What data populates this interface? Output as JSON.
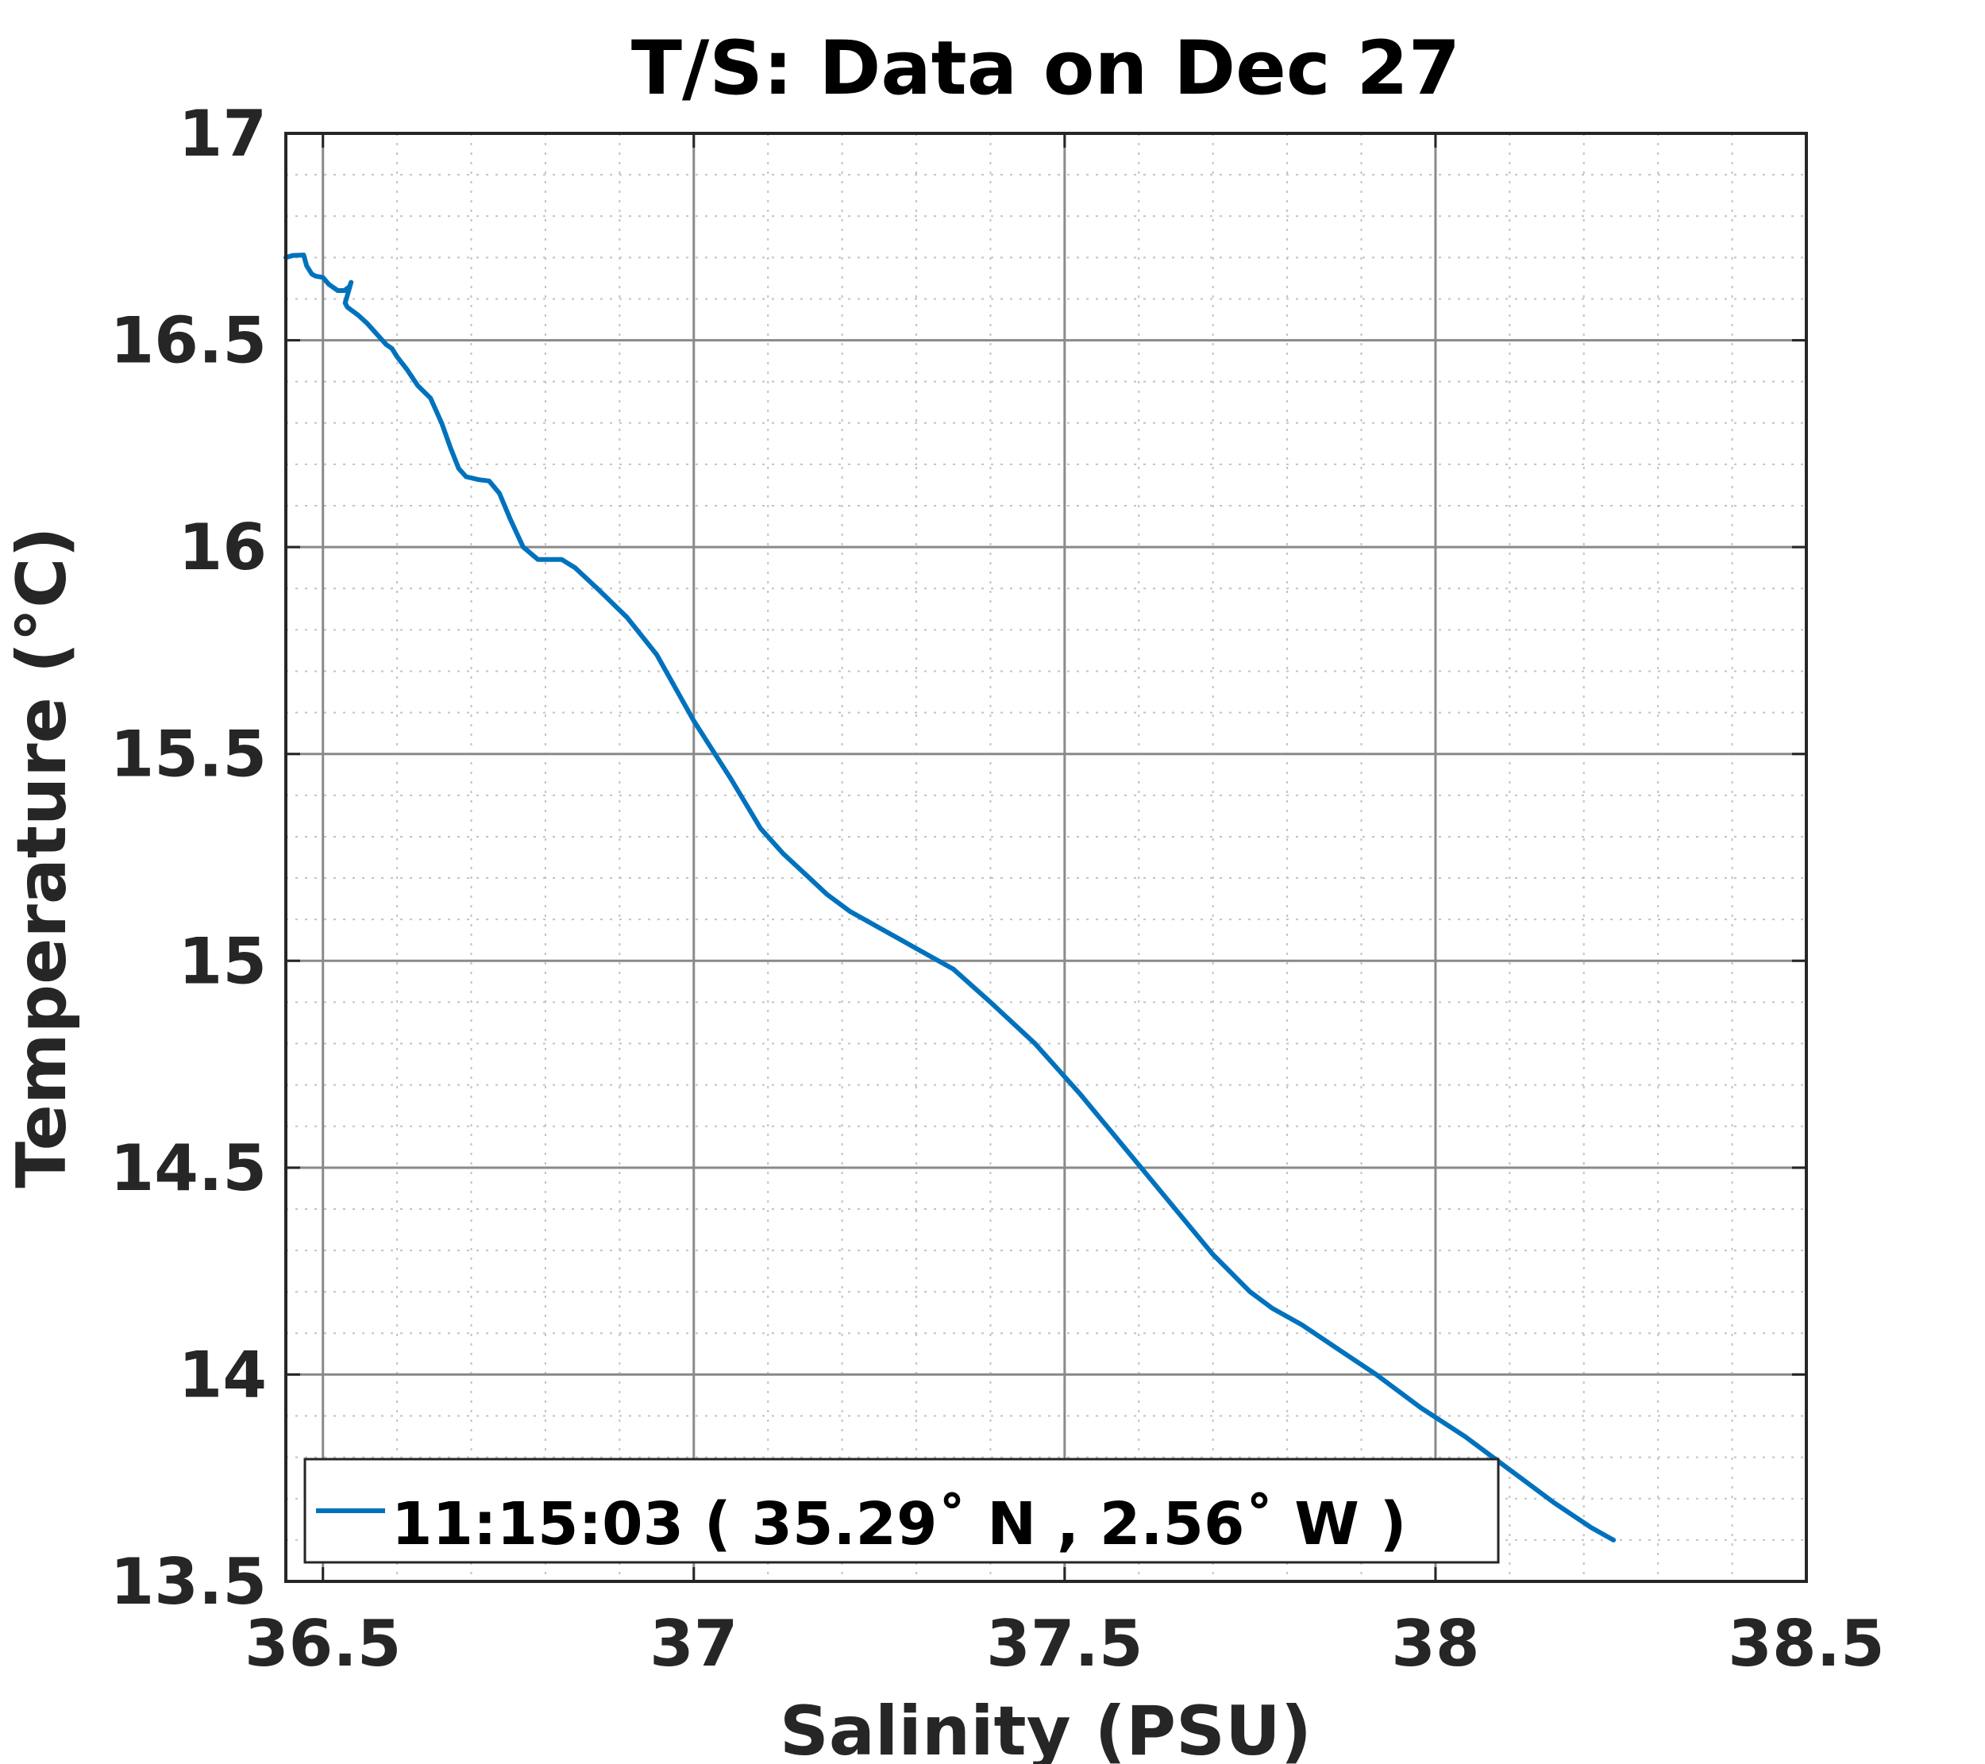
{
  "chart_data": {
    "type": "line",
    "title": "T/S: Data on Dec 27",
    "xlabel": "Salinity (PSU)",
    "ylabel": "Temperature (°C)",
    "xlim": [
      36.45,
      38.5
    ],
    "ylim": [
      13.5,
      17
    ],
    "xticks": [
      36.5,
      37,
      37.5,
      38,
      38.5
    ],
    "xtick_labels": [
      "36.5",
      "37",
      "37.5",
      "38",
      "38.5"
    ],
    "yticks": [
      13.5,
      14,
      14.5,
      15,
      15.5,
      16,
      16.5,
      17
    ],
    "ytick_labels": [
      "13.5",
      "14",
      "14.5",
      "15",
      "15.5",
      "16",
      "16.5",
      "17"
    ],
    "grid": true,
    "minor_grid": true,
    "legend_position": "bottom-left",
    "series": [
      {
        "name": "11:15:03 ( 35.29˚ N , 2.56˚ W )",
        "color": "#0072BD",
        "x": [
          36.45,
          36.46,
          36.474,
          36.478,
          36.485,
          36.49,
          36.5,
          36.508,
          36.52,
          36.529,
          36.536,
          36.538,
          36.53,
          36.533,
          36.548,
          36.56,
          36.575,
          36.585,
          36.593,
          36.6,
          36.613,
          36.628,
          36.645,
          36.66,
          36.672,
          36.683,
          36.693,
          36.71,
          36.724,
          36.738,
          36.752,
          36.77,
          36.79,
          36.81,
          36.822,
          36.84,
          36.87,
          36.91,
          36.95,
          37.0,
          37.05,
          37.09,
          37.12,
          37.15,
          37.18,
          37.21,
          37.25,
          37.3,
          37.35,
          37.4,
          37.46,
          37.52,
          37.58,
          37.64,
          37.7,
          37.75,
          37.78,
          37.82,
          37.87,
          37.92,
          37.98,
          38.04,
          38.1,
          38.16,
          38.21,
          38.24
        ],
        "y": [
          16.7,
          16.705,
          16.706,
          16.68,
          16.66,
          16.655,
          16.652,
          16.635,
          16.62,
          16.62,
          16.63,
          16.64,
          16.59,
          16.58,
          16.56,
          16.54,
          16.51,
          16.49,
          16.48,
          16.46,
          16.43,
          16.39,
          16.36,
          16.3,
          16.24,
          16.19,
          16.17,
          16.163,
          16.16,
          16.13,
          16.07,
          16.0,
          15.97,
          15.97,
          15.97,
          15.95,
          15.9,
          15.83,
          15.74,
          15.58,
          15.44,
          15.32,
          15.26,
          15.21,
          15.16,
          15.12,
          15.08,
          15.03,
          14.98,
          14.9,
          14.8,
          14.68,
          14.55,
          14.42,
          14.29,
          14.2,
          14.16,
          14.12,
          14.06,
          14.0,
          13.92,
          13.85,
          13.77,
          13.69,
          13.63,
          13.6
        ]
      }
    ]
  }
}
